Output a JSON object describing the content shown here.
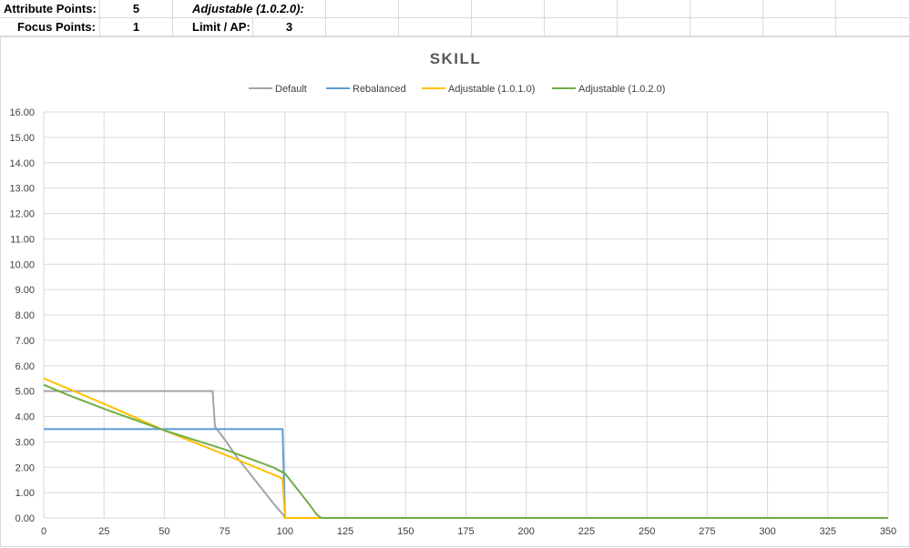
{
  "sheet": {
    "row1": {
      "label_a": "Attribute Points:",
      "value_a": "5",
      "label_b": "Adjustable (1.0.2.0):",
      "value_b": ""
    },
    "row2": {
      "label_a": "Focus Points:",
      "value_a": "1",
      "label_b": "Limit / AP:",
      "value_b": "3"
    }
  },
  "chart_data": {
    "type": "line",
    "title": "SKILL",
    "xlabel": "",
    "ylabel": "",
    "xlim": [
      0,
      350
    ],
    "ylim": [
      0,
      16
    ],
    "x_ticks": [
      "0",
      "25",
      "50",
      "75",
      "100",
      "125",
      "150",
      "175",
      "200",
      "225",
      "250",
      "275",
      "300",
      "325",
      "350"
    ],
    "y_ticks": [
      "0.00",
      "1.00",
      "2.00",
      "3.00",
      "4.00",
      "5.00",
      "6.00",
      "7.00",
      "8.00",
      "9.00",
      "10.00",
      "11.00",
      "12.00",
      "13.00",
      "14.00",
      "15.00",
      "16.00"
    ],
    "grid": true,
    "legend_position": "top",
    "series": [
      {
        "name": "Default",
        "color": "#a5a5a5",
        "points": [
          [
            0,
            5.0
          ],
          [
            70,
            5.0
          ],
          [
            71,
            3.6
          ],
          [
            75,
            3.1
          ],
          [
            80,
            2.4
          ],
          [
            85,
            1.8
          ],
          [
            90,
            1.2
          ],
          [
            95,
            0.6
          ],
          [
            99,
            0.15
          ],
          [
            100,
            0.0
          ],
          [
            350,
            0.0
          ]
        ]
      },
      {
        "name": "Rebalanced",
        "color": "#5b9bd5",
        "points": [
          [
            0,
            3.5
          ],
          [
            99,
            3.5
          ],
          [
            100,
            0.0
          ],
          [
            350,
            0.0
          ]
        ]
      },
      {
        "name": "Adjustable (1.0.1.0)",
        "color": "#ffc000",
        "points": [
          [
            0,
            5.5
          ],
          [
            10,
            5.1
          ],
          [
            25,
            4.5
          ],
          [
            50,
            3.45
          ],
          [
            75,
            2.5
          ],
          [
            98,
            1.6
          ],
          [
            99,
            1.55
          ],
          [
            100,
            0.0
          ],
          [
            350,
            0.0
          ]
        ]
      },
      {
        "name": "Adjustable (1.0.2.0)",
        "color": "#70ad47",
        "points": [
          [
            0,
            5.25
          ],
          [
            10,
            4.85
          ],
          [
            25,
            4.3
          ],
          [
            50,
            3.45
          ],
          [
            75,
            2.7
          ],
          [
            95,
            2.0
          ],
          [
            100,
            1.75
          ],
          [
            105,
            1.15
          ],
          [
            110,
            0.55
          ],
          [
            113,
            0.15
          ],
          [
            115,
            0.0
          ],
          [
            350,
            0.0
          ]
        ]
      }
    ]
  }
}
